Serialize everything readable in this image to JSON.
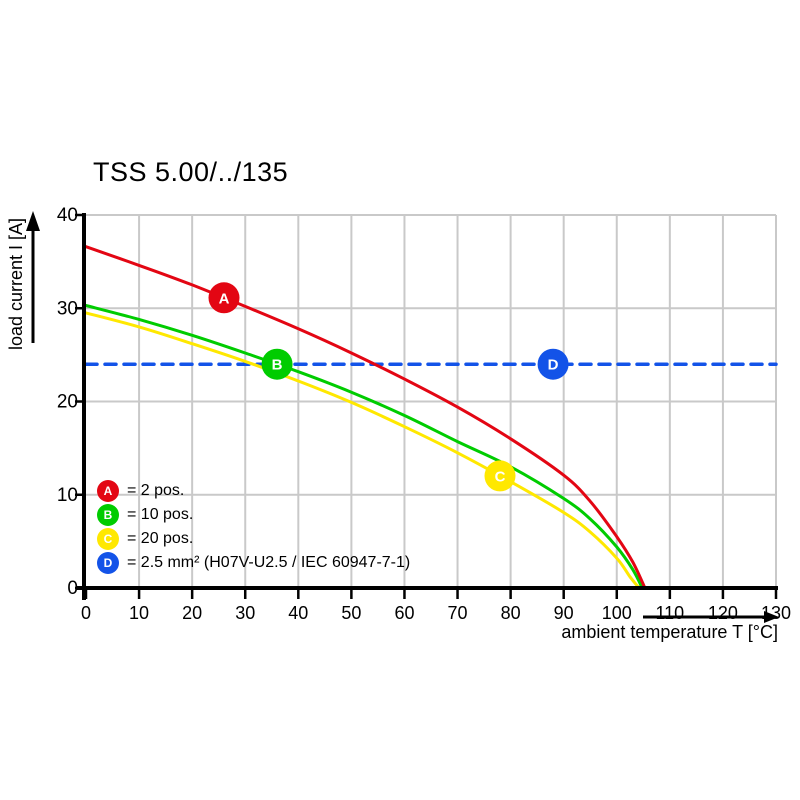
{
  "title": "TSS 5.00/../135",
  "axes": {
    "x": {
      "label": "ambient temperature T [°C]",
      "min": 0,
      "max": 130
    },
    "y": {
      "label": "load current I [A]",
      "min": 0,
      "max": 40
    }
  },
  "legend": [
    {
      "id": "A",
      "color": "#e30613",
      "label": "= 2 pos."
    },
    {
      "id": "B",
      "color": "#00cc00",
      "label": "= 10 pos."
    },
    {
      "id": "C",
      "color": "#ffe800",
      "label": "= 20 pos."
    },
    {
      "id": "D",
      "color": "#1353e8",
      "label": "= 2.5 mm² (H07V-U2.5 / IEC 60947-7-1)"
    }
  ],
  "chart_data": {
    "type": "line",
    "title": "TSS 5.00/../135",
    "xlabel": "ambient temperature T [°C]",
    "ylabel": "load current I [A]",
    "xlim": [
      0,
      130
    ],
    "ylim": [
      0,
      40
    ],
    "x_ticks": [
      0,
      10,
      20,
      30,
      40,
      50,
      60,
      70,
      80,
      90,
      100,
      110,
      120,
      130
    ],
    "y_ticks": [
      0,
      10,
      20,
      30,
      40
    ],
    "grid": true,
    "grid_color": "#c9c9c9",
    "reference_line": {
      "name": "D",
      "value": 24,
      "color": "#1353e8",
      "style": "dashed",
      "marker_at_x": 88
    },
    "series": [
      {
        "name": "A",
        "label": "= 2 pos.",
        "color": "#e30613",
        "marker_at_x": 26,
        "points": [
          [
            0,
            36.6
          ],
          [
            10,
            34.6
          ],
          [
            20,
            32.5
          ],
          [
            30,
            30.2
          ],
          [
            40,
            27.8
          ],
          [
            50,
            25.2
          ],
          [
            60,
            22.4
          ],
          [
            70,
            19.4
          ],
          [
            80,
            16.0
          ],
          [
            90,
            12.1
          ],
          [
            95,
            9.3
          ],
          [
            100,
            5.5
          ],
          [
            103,
            2.8
          ],
          [
            105.3,
            0
          ]
        ]
      },
      {
        "name": "B",
        "label": "= 10 pos.",
        "color": "#00cc00",
        "marker_at_x": 36,
        "points": [
          [
            0,
            30.3
          ],
          [
            10,
            28.8
          ],
          [
            20,
            27.1
          ],
          [
            30,
            25.2
          ],
          [
            40,
            23.2
          ],
          [
            50,
            21.0
          ],
          [
            60,
            18.5
          ],
          [
            70,
            15.7
          ],
          [
            80,
            13.0
          ],
          [
            90,
            9.6
          ],
          [
            95,
            7.4
          ],
          [
            100,
            4.4
          ],
          [
            103,
            2.0
          ],
          [
            104.8,
            0
          ]
        ]
      },
      {
        "name": "C",
        "label": "= 20 pos.",
        "color": "#ffe800",
        "marker_at_x": 78,
        "points": [
          [
            0,
            29.5
          ],
          [
            10,
            28.0
          ],
          [
            20,
            26.2
          ],
          [
            30,
            24.3
          ],
          [
            40,
            22.2
          ],
          [
            50,
            19.9
          ],
          [
            60,
            17.3
          ],
          [
            70,
            14.5
          ],
          [
            80,
            11.4
          ],
          [
            90,
            8.1
          ],
          [
            95,
            6.0
          ],
          [
            100,
            3.2
          ],
          [
            102.5,
            1.2
          ],
          [
            104.2,
            0
          ]
        ]
      },
      {
        "name": "D",
        "label": "= 2.5 mm² (H07V-U2.5 / IEC 60947-7-1)",
        "color": "#1353e8",
        "style": "dashed",
        "marker_at_x": 88,
        "points": [
          [
            0,
            24
          ],
          [
            130,
            24
          ]
        ]
      }
    ]
  }
}
